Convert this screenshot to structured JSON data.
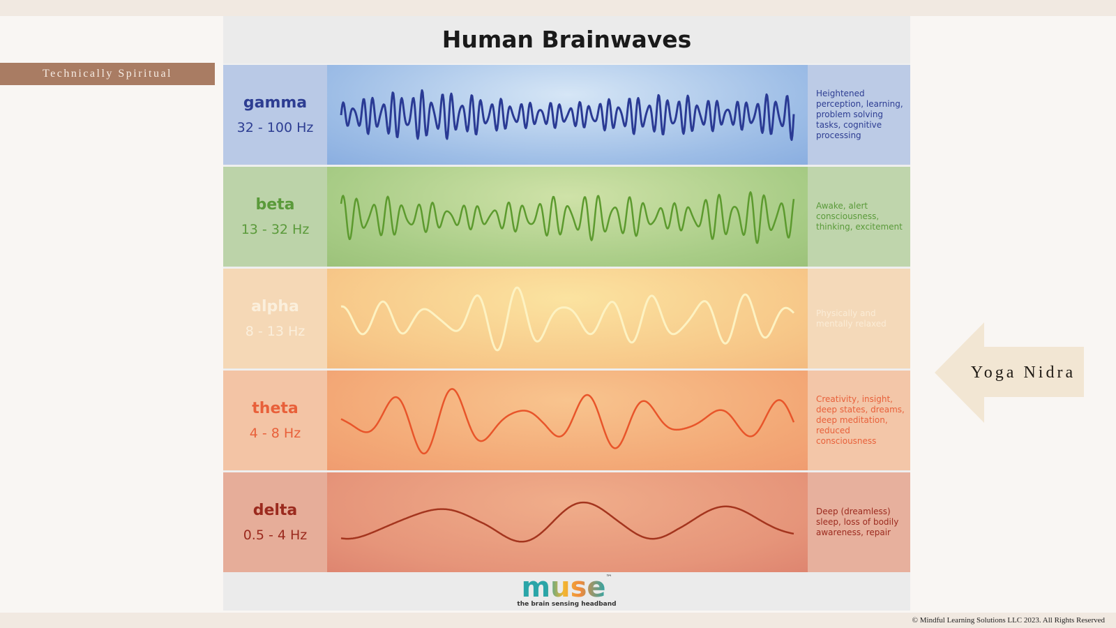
{
  "header": {
    "tag": "Technically Spiritual"
  },
  "diagram": {
    "title": "Human Brainwaves",
    "bands": [
      {
        "name": "gamma",
        "range": "32 - 100 Hz",
        "description": "Heightened perception, learning, problem solving tasks, cognitive processing"
      },
      {
        "name": "beta",
        "range": "13 - 32 Hz",
        "description": "Awake, alert consciousness, thinking, excitement"
      },
      {
        "name": "alpha",
        "range": "8 - 13 Hz",
        "description": "Physically and mentally relaxed"
      },
      {
        "name": "theta",
        "range": "4 - 8 Hz",
        "description": "Creativity, insight, deep states, dreams, deep meditation, reduced consciousness"
      },
      {
        "name": "delta",
        "range": "0.5 - 4 Hz",
        "description": "Deep (dreamless) sleep, loss of bodily awareness, repair"
      }
    ],
    "logo": {
      "wordmark": "muse",
      "trademark": "™",
      "tagline": "the brain sensing headband"
    }
  },
  "callout": {
    "label": "Yoga Nidra"
  },
  "footer": {
    "copyright": "© Mindful Learning Solutions LLC 2023. All Rights Reserved"
  }
}
